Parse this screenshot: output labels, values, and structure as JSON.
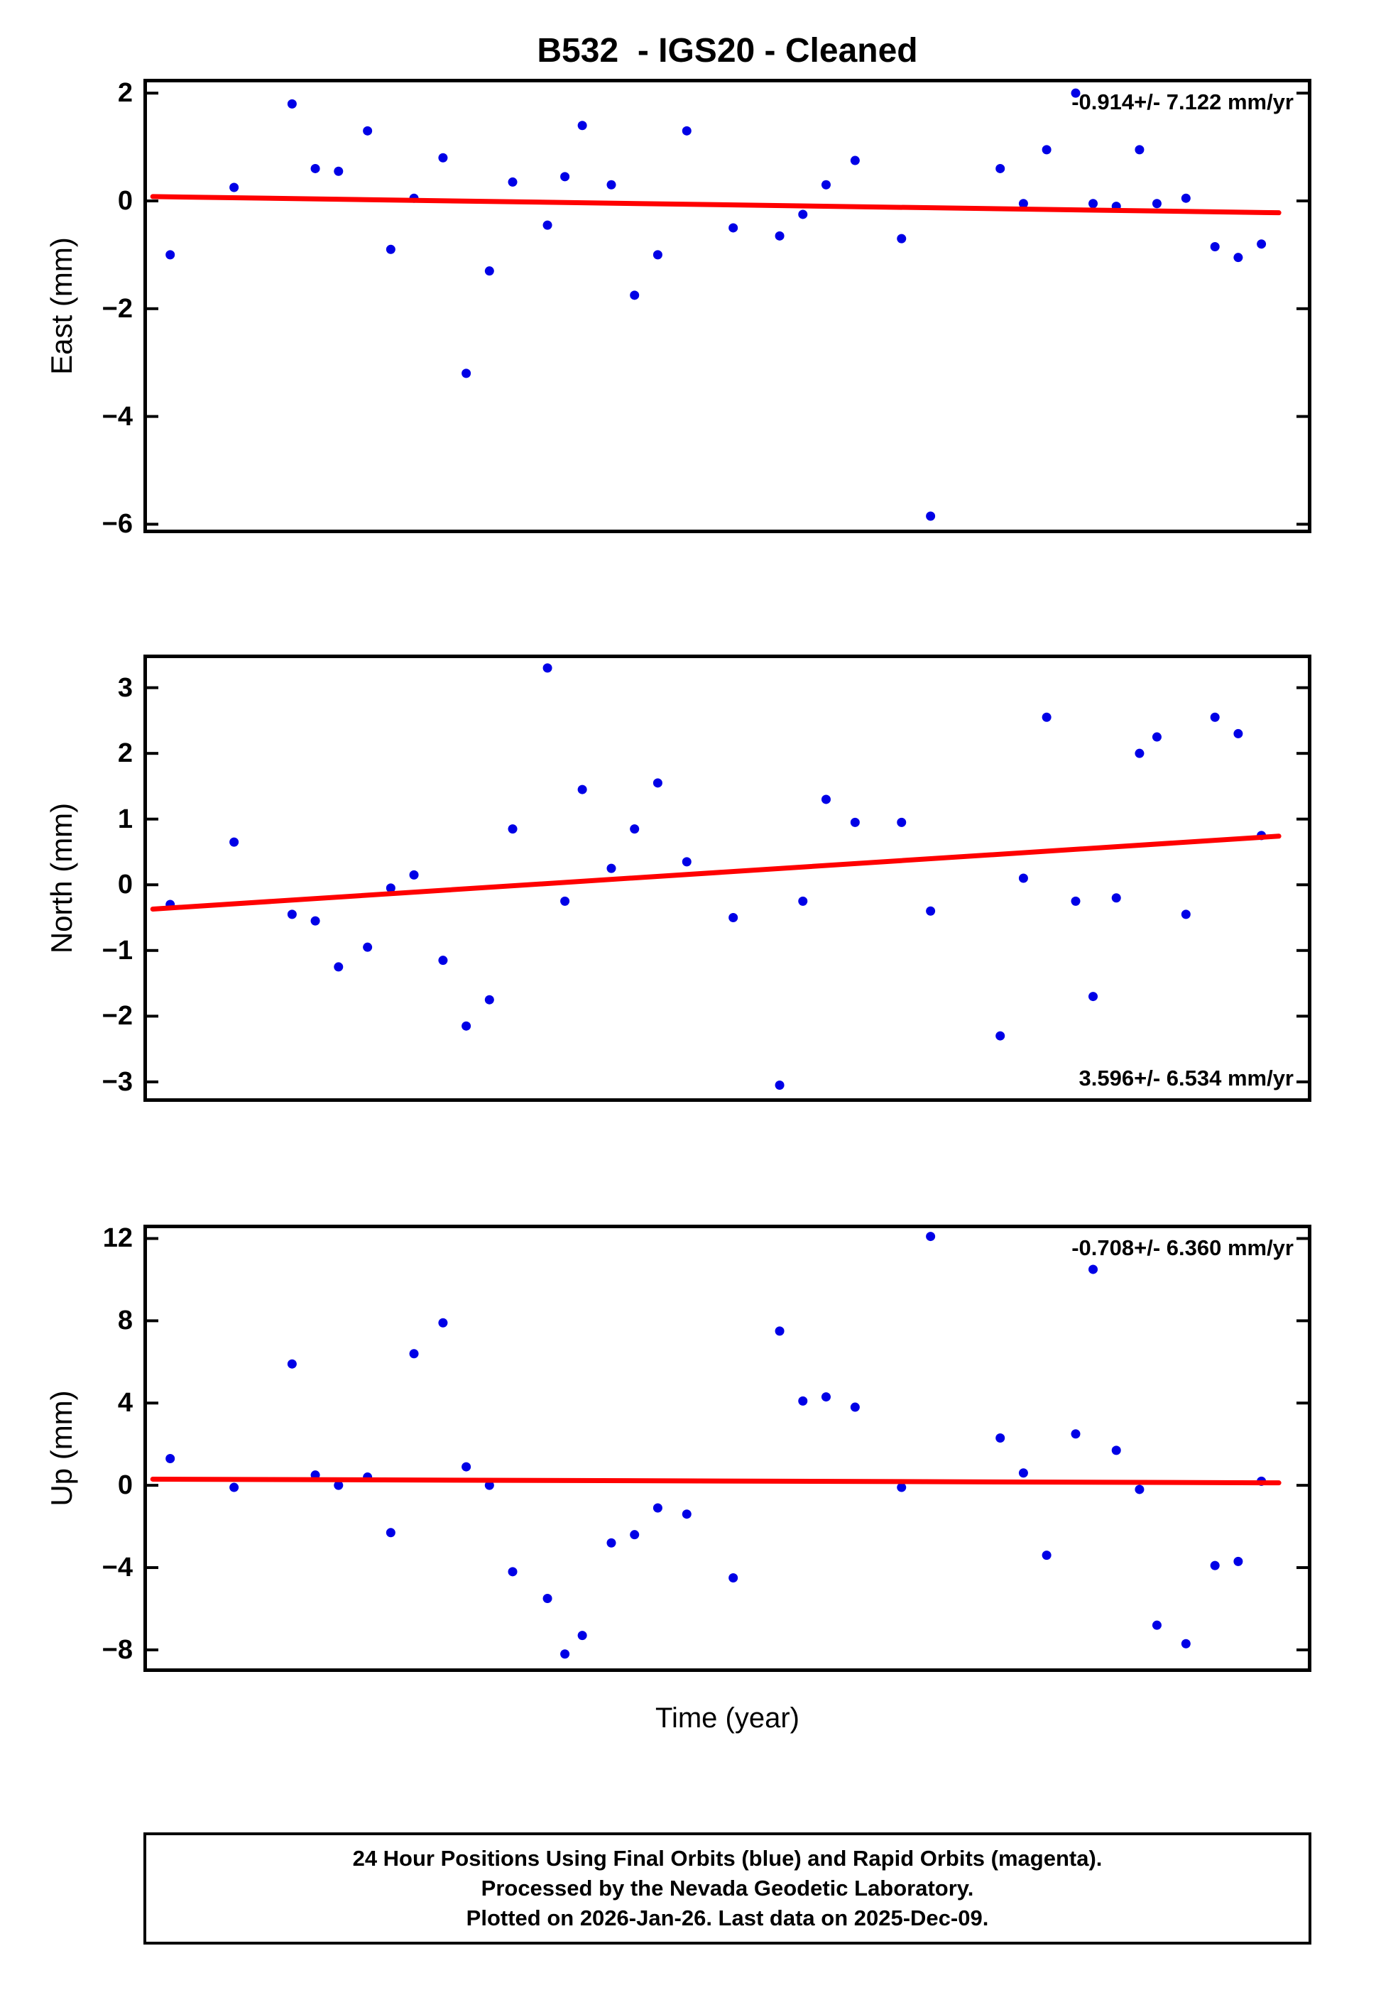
{
  "title": "B532  - IGS20 - Cleaned",
  "xlabel": "Time (year)",
  "colors": {
    "point": "#0000e6",
    "trend": "#ff0000"
  },
  "footer": {
    "line1": "24 Hour Positions Using Final Orbits (blue) and Rapid Orbits (magenta).",
    "line2": "Processed by the Nevada Geodetic Laboratory.",
    "line3": "Plotted on 2026-Jan-26. Last data on 2025-Dec-09."
  },
  "chart_data": [
    {
      "type": "scatter",
      "title": "East component",
      "ylabel": "East (mm)",
      "ylim": [
        -6.1,
        2.2
      ],
      "yticks": [
        {
          "value": 2,
          "label": "2"
        },
        {
          "value": 0,
          "label": "0"
        },
        {
          "value": -2,
          "label": "−2"
        },
        {
          "value": -4,
          "label": "−4"
        },
        {
          "value": -6,
          "label": "−6"
        }
      ],
      "annotation": "-0.914+/- 7.122 mm/yr",
      "annotation_position": "top-right",
      "x_note": "x values normalized 0–1 across axis; no x tick labels shown",
      "trend": {
        "x": [
          0.005,
          0.975
        ],
        "y": [
          0.08,
          -0.22
        ]
      },
      "points": [
        [
          0.02,
          -1.0
        ],
        [
          0.075,
          0.25
        ],
        [
          0.125,
          1.8
        ],
        [
          0.145,
          0.6
        ],
        [
          0.165,
          0.55
        ],
        [
          0.19,
          1.3
        ],
        [
          0.21,
          -0.9
        ],
        [
          0.23,
          0.05
        ],
        [
          0.255,
          0.8
        ],
        [
          0.275,
          -3.2
        ],
        [
          0.295,
          -1.3
        ],
        [
          0.315,
          0.35
        ],
        [
          0.345,
          -0.45
        ],
        [
          0.36,
          0.45
        ],
        [
          0.375,
          1.4
        ],
        [
          0.4,
          0.3
        ],
        [
          0.42,
          -1.75
        ],
        [
          0.44,
          -1.0
        ],
        [
          0.465,
          1.3
        ],
        [
          0.505,
          -0.5
        ],
        [
          0.545,
          -0.65
        ],
        [
          0.565,
          -0.25
        ],
        [
          0.585,
          0.3
        ],
        [
          0.61,
          0.75
        ],
        [
          0.65,
          -0.7
        ],
        [
          0.675,
          -5.85
        ],
        [
          0.735,
          0.6
        ],
        [
          0.755,
          -0.05
        ],
        [
          0.775,
          0.95
        ],
        [
          0.8,
          2.0
        ],
        [
          0.815,
          -0.05
        ],
        [
          0.835,
          -0.1
        ],
        [
          0.855,
          0.95
        ],
        [
          0.87,
          -0.05
        ],
        [
          0.895,
          0.05
        ],
        [
          0.92,
          -0.85
        ],
        [
          0.94,
          -1.05
        ],
        [
          0.96,
          -0.8
        ]
      ]
    },
    {
      "type": "scatter",
      "title": "North component",
      "ylabel": "North (mm)",
      "ylim": [
        -3.25,
        3.45
      ],
      "yticks": [
        {
          "value": 3,
          "label": "3"
        },
        {
          "value": 2,
          "label": "2"
        },
        {
          "value": 1,
          "label": "1"
        },
        {
          "value": 0,
          "label": "0"
        },
        {
          "value": -1,
          "label": "−1"
        },
        {
          "value": -2,
          "label": "−2"
        },
        {
          "value": -3,
          "label": "−3"
        }
      ],
      "annotation": "3.596+/- 6.534 mm/yr",
      "annotation_position": "bottom-right",
      "x_note": "x values normalized 0–1 across axis; no x tick labels shown",
      "trend": {
        "x": [
          0.005,
          0.975
        ],
        "y": [
          -0.37,
          0.74
        ]
      },
      "points": [
        [
          0.02,
          -0.3
        ],
        [
          0.075,
          0.65
        ],
        [
          0.125,
          -0.45
        ],
        [
          0.145,
          -0.55
        ],
        [
          0.165,
          -1.25
        ],
        [
          0.19,
          -0.95
        ],
        [
          0.21,
          -0.05
        ],
        [
          0.23,
          0.15
        ],
        [
          0.255,
          -1.15
        ],
        [
          0.275,
          -2.15
        ],
        [
          0.295,
          -1.75
        ],
        [
          0.315,
          0.85
        ],
        [
          0.345,
          3.3
        ],
        [
          0.36,
          -0.25
        ],
        [
          0.375,
          1.45
        ],
        [
          0.4,
          0.25
        ],
        [
          0.42,
          0.85
        ],
        [
          0.44,
          1.55
        ],
        [
          0.465,
          0.35
        ],
        [
          0.505,
          -0.5
        ],
        [
          0.545,
          -3.05
        ],
        [
          0.565,
          -0.25
        ],
        [
          0.585,
          1.3
        ],
        [
          0.61,
          0.95
        ],
        [
          0.65,
          0.95
        ],
        [
          0.675,
          -0.4
        ],
        [
          0.735,
          -2.3
        ],
        [
          0.755,
          0.1
        ],
        [
          0.775,
          2.55
        ],
        [
          0.8,
          -0.25
        ],
        [
          0.815,
          -1.7
        ],
        [
          0.835,
          -0.2
        ],
        [
          0.855,
          2.0
        ],
        [
          0.87,
          2.25
        ],
        [
          0.895,
          -0.45
        ],
        [
          0.92,
          2.55
        ],
        [
          0.94,
          2.3
        ],
        [
          0.96,
          0.75
        ]
      ]
    },
    {
      "type": "scatter",
      "title": "Up component",
      "ylabel": "Up (mm)",
      "ylim": [
        -8.9,
        12.5
      ],
      "yticks": [
        {
          "value": 12,
          "label": "12"
        },
        {
          "value": 8,
          "label": "8"
        },
        {
          "value": 4,
          "label": "4"
        },
        {
          "value": 0,
          "label": "0"
        },
        {
          "value": -4,
          "label": "−4"
        },
        {
          "value": -8,
          "label": "−8"
        }
      ],
      "annotation": "-0.708+/- 6.360 mm/yr",
      "annotation_position": "top-right",
      "x_note": "x values normalized 0–1 across axis; no x tick labels shown",
      "trend": {
        "x": [
          0.005,
          0.975
        ],
        "y": [
          0.3,
          0.12
        ]
      },
      "points": [
        [
          0.02,
          1.3
        ],
        [
          0.075,
          -0.1
        ],
        [
          0.125,
          5.9
        ],
        [
          0.145,
          0.5
        ],
        [
          0.165,
          0.0
        ],
        [
          0.19,
          0.4
        ],
        [
          0.21,
          -2.3
        ],
        [
          0.23,
          6.4
        ],
        [
          0.255,
          7.9
        ],
        [
          0.275,
          0.9
        ],
        [
          0.295,
          0.0
        ],
        [
          0.315,
          -4.2
        ],
        [
          0.345,
          -5.5
        ],
        [
          0.36,
          -8.2
        ],
        [
          0.375,
          -7.3
        ],
        [
          0.4,
          -2.8
        ],
        [
          0.42,
          -2.4
        ],
        [
          0.44,
          -1.1
        ],
        [
          0.465,
          -1.4
        ],
        [
          0.505,
          -4.5
        ],
        [
          0.545,
          7.5
        ],
        [
          0.565,
          4.1
        ],
        [
          0.585,
          4.3
        ],
        [
          0.61,
          3.8
        ],
        [
          0.65,
          -0.1
        ],
        [
          0.675,
          12.1
        ],
        [
          0.735,
          2.3
        ],
        [
          0.755,
          0.6
        ],
        [
          0.775,
          -3.4
        ],
        [
          0.8,
          2.5
        ],
        [
          0.815,
          10.5
        ],
        [
          0.835,
          1.7
        ],
        [
          0.855,
          -0.2
        ],
        [
          0.87,
          -6.8
        ],
        [
          0.895,
          -7.7
        ],
        [
          0.92,
          -3.9
        ],
        [
          0.94,
          -3.7
        ],
        [
          0.96,
          0.2
        ]
      ]
    }
  ]
}
